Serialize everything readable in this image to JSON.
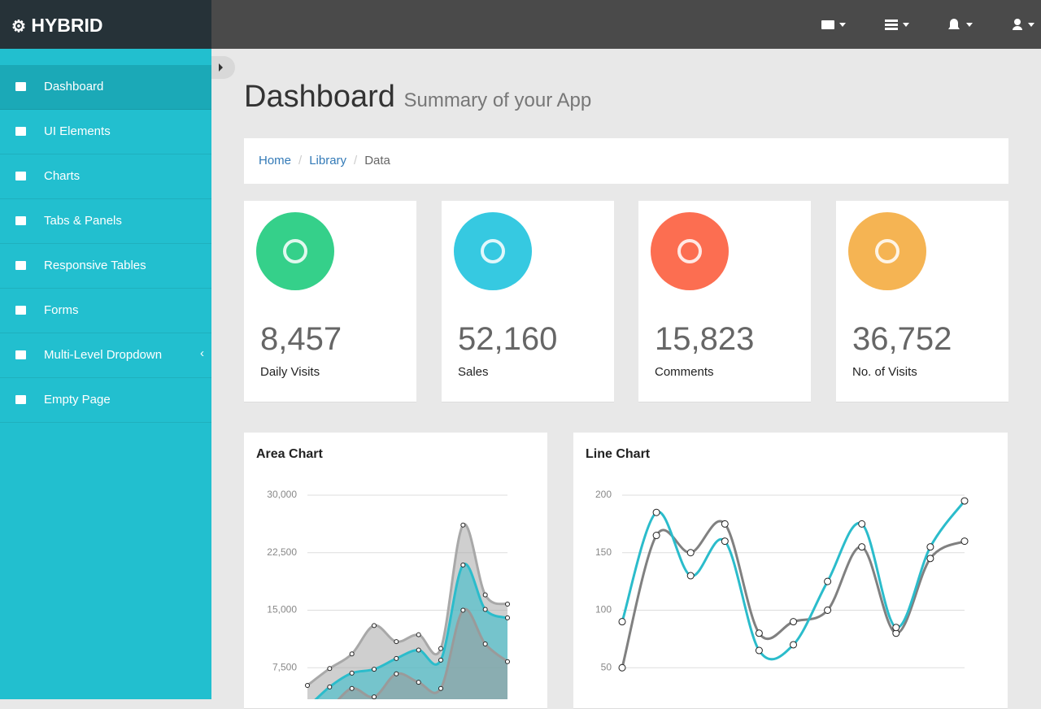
{
  "brand": "HYBRID",
  "sidebar": {
    "items": [
      "Dashboard",
      "UI Elements",
      "Charts",
      "Tabs & Panels",
      "Responsive Tables",
      "Forms",
      "Multi-Level Dropdown",
      "Empty Page"
    ]
  },
  "header": {
    "title": "Dashboard",
    "subtitle": "Summary of your App"
  },
  "breadcrumb": [
    "Home",
    "Library",
    "Data"
  ],
  "stats": [
    {
      "value": "8,457",
      "label": "Daily Visits",
      "color": "#35d08a"
    },
    {
      "value": "52,160",
      "label": "Sales",
      "color": "#36c9e1"
    },
    {
      "value": "15,823",
      "label": "Comments",
      "color": "#fc6e51"
    },
    {
      "value": "36,752",
      "label": "No. of Visits",
      "color": "#f5b453"
    }
  ],
  "chart_data": [
    {
      "type": "area",
      "title": "Area Chart",
      "ylim": [
        0,
        30000
      ],
      "yticks": [
        {
          "value": 7500,
          "label": "7,500"
        },
        {
          "value": 15000,
          "label": "15,000"
        },
        {
          "value": 22500,
          "label": "22,500"
        },
        {
          "value": 30000,
          "label": "30,000"
        }
      ],
      "grid": true,
      "series": [
        {
          "color": "#a8a8a8",
          "values": [
            5200,
            7400,
            9300,
            13000,
            10900,
            11800,
            10000,
            26100,
            17000,
            15800
          ]
        },
        {
          "color": "#2bbccb",
          "values": [
            2300,
            5000,
            6800,
            7300,
            8700,
            9800,
            8500,
            20900,
            15100,
            14000
          ]
        },
        {
          "color": "#9a9a9a",
          "values": [
            1300,
            2300,
            4800,
            3700,
            6700,
            5600,
            4800,
            15000,
            10600,
            8300
          ]
        }
      ]
    },
    {
      "type": "line",
      "title": "Line Chart",
      "ylim": [
        0,
        200
      ],
      "yticks": [
        50,
        100,
        150,
        200
      ],
      "grid": true,
      "series": [
        {
          "color": "#808080",
          "values": [
            50,
            165,
            150,
            175,
            80,
            90,
            100,
            155,
            80,
            145,
            160
          ]
        },
        {
          "color": "#2bbccb",
          "values": [
            90,
            185,
            130,
            160,
            65,
            70,
            125,
            175,
            85,
            155,
            195
          ]
        }
      ]
    }
  ]
}
